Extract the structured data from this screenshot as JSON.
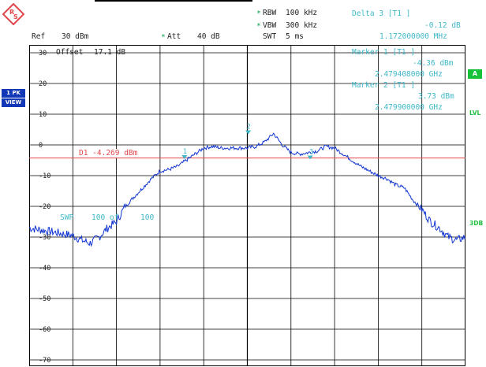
{
  "header": {
    "rbw_label": "RBW",
    "rbw_value": "100 kHz",
    "vbw_label": "VBW",
    "vbw_value": "300 kHz",
    "swt_label": "SWT",
    "swt_value": "5 ms",
    "ref_label": "Ref",
    "ref_value": "30 dBm",
    "att_label": "Att",
    "att_value": "40 dB",
    "delta_label": "Delta 3 [T1 ]",
    "delta_level": "-0.12 dB",
    "delta_freq": "1.172000000 MHz",
    "star_glyph": "*"
  },
  "markers": [
    {
      "label": "Marker 1 [T1 ]",
      "level": "-4.36 dBm",
      "freq": "2.479408000 GHz"
    },
    {
      "label": "Marker 2 [T1 ]",
      "level": "3.73 dBm",
      "freq": "2.479900000 GHz"
    }
  ],
  "plot": {
    "offset_label": "Offset",
    "offset_value": "17.1 dB",
    "d1_label": "D1 -4.269 dBm",
    "swp_label": "SWP",
    "swp_value": "100 of",
    "swp_total": "100",
    "marker_numbers": [
      "1",
      "2",
      "3"
    ],
    "y_ticks": [
      "30",
      "20",
      "10",
      "0",
      "-10",
      "-20",
      "-30",
      "-40",
      "-50",
      "-60",
      "-70"
    ]
  },
  "sidebar": {
    "view_line1": "1 PK",
    "view_line2": "VIEW",
    "a_label": "A",
    "lvl_label": "LVL",
    "three_db_label": "3DB"
  },
  "colors": {
    "trace": "#1035d0",
    "display_line": "#e0474b",
    "marker": "#3fb8c8",
    "grid": "#000000",
    "side_button": "#1238b8",
    "indicator_green": "#17c23a"
  },
  "chart_data": {
    "type": "line",
    "title": "",
    "xlabel": "",
    "ylabel": "",
    "ylim": [
      -70,
      30
    ],
    "y_unit": "dBm",
    "reference_line": {
      "name": "D1",
      "value": -4.269
    },
    "x": [
      0,
      2,
      4,
      6,
      8,
      10,
      12,
      14,
      16,
      18,
      20,
      22,
      24,
      26,
      28,
      30,
      32,
      34,
      36,
      38,
      40,
      42,
      44,
      46,
      48,
      50,
      52,
      54,
      56,
      58,
      60,
      62,
      64,
      66,
      68,
      70,
      72,
      74,
      76,
      78,
      80,
      82,
      84,
      86,
      88,
      90,
      92,
      94,
      96,
      98,
      100
    ],
    "series": [
      {
        "values": [
          -27,
          -27.5,
          -28,
          -28.5,
          -29,
          -29.5,
          -31,
          -32,
          -30,
          -27,
          -25,
          -20,
          -17,
          -14,
          -11,
          -8.5,
          -8,
          -7,
          -5,
          -3,
          -1,
          -0.5,
          -1,
          -1,
          -1,
          -1,
          -0.5,
          1,
          3.73,
          0,
          -2.5,
          -3,
          -2.5,
          -2,
          -0.5,
          -1,
          -3,
          -5,
          -7,
          -8.5,
          -10,
          -11,
          -13,
          -14,
          -18,
          -21,
          -25,
          -27,
          -30,
          -31,
          -30
        ]
      }
    ]
  }
}
